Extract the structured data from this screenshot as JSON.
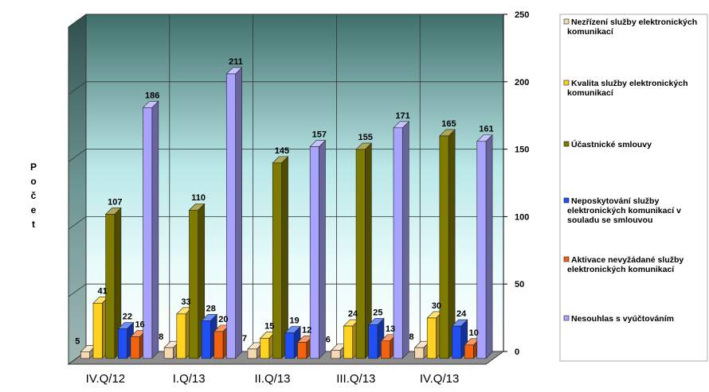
{
  "chart_data": {
    "type": "bar",
    "title": "",
    "xlabel": "",
    "ylabel": "Počet",
    "ylim": [
      0,
      250
    ],
    "yticks": [
      "0",
      "50",
      "100",
      "150",
      "200",
      "250"
    ],
    "categories": [
      "IV.Q/12",
      "I.Q/13",
      "II.Q/13",
      "III.Q/13",
      "IV.Q/13"
    ],
    "legend_position": "right",
    "grid": true,
    "series": [
      {
        "name": "Nezřízení služby elektronických komunikací",
        "color": "#f5d7b0",
        "values": [
          5,
          8,
          7,
          6,
          8
        ]
      },
      {
        "name": "Kvalita služby elektronických komunikací",
        "color": "#ffd21f",
        "values": [
          41,
          33,
          15,
          24,
          30
        ]
      },
      {
        "name": "Účastnické smlouvy",
        "color": "#7f7a00",
        "values": [
          107,
          110,
          145,
          155,
          165
        ]
      },
      {
        "name": "Neposkytování služby elektronických komunikací v souladu se smlouvou",
        "color": "#1f4ff5",
        "values": [
          22,
          28,
          19,
          25,
          24
        ]
      },
      {
        "name": "Aktivace nevyžádané služby elektronických komunikací",
        "color": "#f2620f",
        "values": [
          16,
          20,
          12,
          13,
          10
        ]
      },
      {
        "name": "Nesouhlas s vyúčtováním",
        "color": "#a7a3ff",
        "values": [
          186,
          211,
          157,
          171,
          161
        ]
      }
    ]
  }
}
